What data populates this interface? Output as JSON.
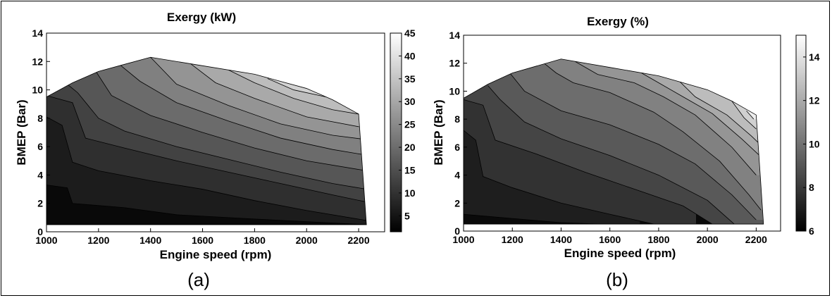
{
  "chart_data": [
    {
      "type": "contour",
      "panel_label": "(a)",
      "title": "Exergy (kW)",
      "xlabel": "Engine speed (rpm)",
      "ylabel": "BMEP (Bar)",
      "xlim": [
        1000,
        2300
      ],
      "ylim": [
        0,
        14
      ],
      "xticks": [
        1000,
        1200,
        1400,
        1600,
        1800,
        2000,
        2200
      ],
      "yticks": [
        0,
        2,
        4,
        6,
        8,
        10,
        12,
        14
      ],
      "colorbar": {
        "min": 1.5,
        "max": 45,
        "ticks": [
          5,
          10,
          15,
          20,
          25,
          30,
          35,
          40,
          45
        ]
      },
      "boundary_top": [
        [
          1000,
          9.5
        ],
        [
          1100,
          10.5
        ],
        [
          1200,
          11.3
        ],
        [
          1300,
          11.8
        ],
        [
          1400,
          12.3
        ],
        [
          1600,
          11.7
        ],
        [
          1800,
          11.1
        ],
        [
          1900,
          10.6
        ],
        [
          2000,
          10.1
        ],
        [
          2100,
          9.3
        ],
        [
          2200,
          8.3
        ],
        [
          2230,
          0.5
        ]
      ],
      "boundary_bottom": 0.5,
      "levels": [
        4.5,
        8,
        11,
        14.5,
        18,
        21.5,
        25,
        28.5,
        32,
        35.5,
        39,
        42.5
      ],
      "contours": [
        {
          "level": 4.5,
          "points": [
            [
              1000,
              3.3
            ],
            [
              1080,
              3.1
            ],
            [
              1100,
              2.0
            ],
            [
              1300,
              1.7
            ],
            [
              1500,
              1.2
            ],
            [
              1800,
              0.9
            ],
            [
              2230,
              0.5
            ]
          ]
        },
        {
          "level": 8,
          "points": [
            [
              1000,
              8.1
            ],
            [
              1060,
              7.5
            ],
            [
              1100,
              4.9
            ],
            [
              1200,
              4.3
            ],
            [
              1400,
              3.6
            ],
            [
              1600,
              3.0
            ],
            [
              1800,
              2.2
            ],
            [
              2000,
              1.5
            ],
            [
              2230,
              0.8
            ]
          ]
        },
        {
          "level": 11,
          "points": [
            [
              1000,
              9.6
            ],
            [
              1100,
              9.1
            ],
            [
              1150,
              6.6
            ],
            [
              1300,
              5.9
            ],
            [
              1500,
              5.0
            ],
            [
              1700,
              4.2
            ],
            [
              1900,
              3.4
            ],
            [
              2100,
              2.6
            ],
            [
              2230,
              2.1
            ]
          ]
        },
        {
          "level": 14.5,
          "points": [
            [
              1080,
              10.4
            ],
            [
              1120,
              9.8
            ],
            [
              1200,
              8.0
            ],
            [
              1300,
              7.1
            ],
            [
              1500,
              6.0
            ],
            [
              1700,
              5.1
            ],
            [
              1900,
              4.2
            ],
            [
              2100,
              3.4
            ],
            [
              2230,
              3.0
            ]
          ]
        },
        {
          "level": 18,
          "points": [
            [
              1190,
              11.3
            ],
            [
              1250,
              9.6
            ],
            [
              1400,
              8.2
            ],
            [
              1600,
              7.0
            ],
            [
              1800,
              5.9
            ],
            [
              2000,
              5.0
            ],
            [
              2230,
              4.3
            ]
          ]
        },
        {
          "level": 21.5,
          "points": [
            [
              1280,
              11.8
            ],
            [
              1360,
              10.6
            ],
            [
              1500,
              9.1
            ],
            [
              1700,
              7.8
            ],
            [
              1900,
              6.6
            ],
            [
              2100,
              5.8
            ],
            [
              2230,
              5.4
            ]
          ]
        },
        {
          "level": 25,
          "points": [
            [
              1400,
              12.3
            ],
            [
              1500,
              10.4
            ],
            [
              1700,
              8.9
            ],
            [
              1900,
              7.6
            ],
            [
              2100,
              6.8
            ],
            [
              2230,
              6.5
            ]
          ]
        },
        {
          "level": 28.5,
          "points": [
            [
              1550,
              11.9
            ],
            [
              1650,
              10.5
            ],
            [
              1800,
              9.4
            ],
            [
              2000,
              8.1
            ],
            [
              2230,
              7.3
            ]
          ]
        },
        {
          "level": 32,
          "points": [
            [
              1700,
              11.4
            ],
            [
              1800,
              10.5
            ],
            [
              1950,
              9.4
            ],
            [
              2100,
              8.6
            ],
            [
              2230,
              8.2
            ]
          ]
        },
        {
          "level": 35.5,
          "points": [
            [
              1850,
              10.8
            ],
            [
              1950,
              10.0
            ],
            [
              2100,
              9.4
            ],
            [
              2210,
              8.5
            ]
          ]
        },
        {
          "level": 39,
          "points": [
            [
              1990,
              10.2
            ],
            [
              2080,
              9.6
            ],
            [
              2180,
              8.8
            ]
          ]
        },
        {
          "level": 42.5,
          "points": [
            [
              2120,
              9.2
            ],
            [
              2180,
              8.5
            ]
          ]
        }
      ]
    },
    {
      "type": "contour",
      "panel_label": "(b)",
      "title": "Exergy (%)",
      "xlabel": "Engine speed (rpm)",
      "ylabel": "BMEP (Bar)",
      "xlim": [
        1000,
        2300
      ],
      "ylim": [
        0,
        14
      ],
      "xticks": [
        1000,
        1200,
        1400,
        1600,
        1800,
        2000,
        2200
      ],
      "yticks": [
        0,
        2,
        4,
        6,
        8,
        10,
        12,
        14
      ],
      "colorbar": {
        "min": 6,
        "max": 15,
        "ticks": [
          6,
          8,
          10,
          12,
          14
        ]
      },
      "boundary_top": [
        [
          1000,
          9.5
        ],
        [
          1100,
          10.5
        ],
        [
          1200,
          11.3
        ],
        [
          1300,
          11.8
        ],
        [
          1400,
          12.3
        ],
        [
          1600,
          11.7
        ],
        [
          1800,
          11.1
        ],
        [
          1900,
          10.6
        ],
        [
          2000,
          10.1
        ],
        [
          2100,
          9.3
        ],
        [
          2200,
          8.3
        ],
        [
          2230,
          0.5
        ]
      ],
      "boundary_bottom": 0.5,
      "levels": [
        6.7,
        7.4,
        8.1,
        8.8,
        9.5,
        10.2,
        10.9,
        11.6,
        12.3,
        13.0,
        13.7
      ],
      "contours": [
        {
          "level": 6.7,
          "points": [
            [
              1000,
              1.2
            ],
            [
              1200,
              0.9
            ],
            [
              1400,
              0.6
            ],
            [
              1550,
              0.5
            ]
          ]
        },
        {
          "level": 7.4,
          "points": [
            [
              1000,
              7.2
            ],
            [
              1050,
              6.5
            ],
            [
              1080,
              3.9
            ],
            [
              1200,
              3.1
            ],
            [
              1400,
              2.0
            ],
            [
              1600,
              1.2
            ],
            [
              1780,
              0.5
            ]
          ]
        },
        {
          "level": 8.1,
          "points": [
            [
              1000,
              9.4
            ],
            [
              1080,
              9.0
            ],
            [
              1130,
              6.5
            ],
            [
              1300,
              5.5
            ],
            [
              1500,
              4.2
            ],
            [
              1700,
              3.0
            ],
            [
              1900,
              1.8
            ],
            [
              2020,
              0.5
            ]
          ]
        },
        {
          "level": 8.8,
          "points": [
            [
              1100,
              10.4
            ],
            [
              1150,
              9.4
            ],
            [
              1250,
              7.8
            ],
            [
              1400,
              6.6
            ],
            [
              1600,
              5.4
            ],
            [
              1800,
              4.0
            ],
            [
              2000,
              2.2
            ],
            [
              2110,
              0.5
            ]
          ]
        },
        {
          "level": 9.5,
          "points": [
            [
              1190,
              11.3
            ],
            [
              1250,
              10.0
            ],
            [
              1400,
              8.6
            ],
            [
              1600,
              7.6
            ],
            [
              1800,
              6.2
            ],
            [
              1950,
              4.8
            ],
            [
              2100,
              2.6
            ],
            [
              2200,
              0.8
            ]
          ]
        },
        {
          "level": 10.2,
          "points": [
            [
              1330,
              12.0
            ],
            [
              1380,
              11.3
            ],
            [
              1450,
              10.6
            ],
            [
              1600,
              9.9
            ],
            [
              1780,
              8.5
            ],
            [
              1900,
              7.1
            ],
            [
              2050,
              5.0
            ],
            [
              2170,
              2.6
            ],
            [
              2220,
              1.5
            ]
          ]
        },
        {
          "level": 10.9,
          "points": [
            [
              1450,
              12.2
            ],
            [
              1550,
              11.2
            ],
            [
              1700,
              10.6
            ],
            [
              1820,
              9.6
            ],
            [
              1950,
              8.3
            ],
            [
              2100,
              6.0
            ],
            [
              2200,
              4.0
            ]
          ]
        },
        {
          "level": 11.6,
          "points": [
            [
              1730,
              11.3
            ],
            [
              1800,
              10.6
            ],
            [
              1900,
              9.6
            ],
            [
              2020,
              8.4
            ],
            [
              2140,
              6.6
            ],
            [
              2220,
              5.3
            ]
          ]
        },
        {
          "level": 12.3,
          "points": [
            [
              1880,
              10.8
            ],
            [
              1950,
              9.6
            ],
            [
              2080,
              8.3
            ],
            [
              2180,
              6.8
            ],
            [
              2210,
              6.3
            ]
          ]
        },
        {
          "level": 13.0,
          "points": [
            [
              2100,
              9.3
            ],
            [
              2150,
              8.1
            ],
            [
              2200,
              7.3
            ]
          ]
        },
        {
          "level": 13.7,
          "points": [
            [
              2160,
              8.6
            ],
            [
              2190,
              8.0
            ]
          ]
        }
      ]
    }
  ]
}
